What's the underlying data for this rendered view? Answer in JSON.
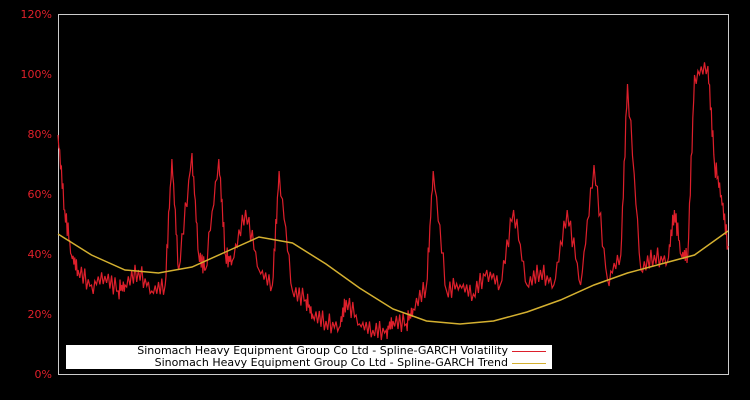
{
  "chart_data": {
    "type": "line",
    "title": "",
    "xlabel": "",
    "ylabel": "",
    "ylim": [
      0,
      120
    ],
    "yticks": [
      "0%",
      "20%",
      "40%",
      "60%",
      "80%",
      "100%",
      "120%"
    ],
    "grid": false,
    "legend_position": "lower-left",
    "series": [
      {
        "name": "Sinomach Heavy Equipment Group Co Ltd - Spline-GARCH Volatility",
        "color": "#dd1f2b",
        "x_frac": [
          0.0,
          0.01,
          0.02,
          0.03,
          0.05,
          0.07,
          0.09,
          0.1,
          0.12,
          0.14,
          0.16,
          0.17,
          0.18,
          0.2,
          0.21,
          0.22,
          0.24,
          0.25,
          0.26,
          0.28,
          0.3,
          0.32,
          0.33,
          0.35,
          0.37,
          0.38,
          0.4,
          0.42,
          0.43,
          0.45,
          0.47,
          0.49,
          0.5,
          0.52,
          0.53,
          0.55,
          0.56,
          0.58,
          0.6,
          0.62,
          0.64,
          0.66,
          0.68,
          0.7,
          0.72,
          0.74,
          0.76,
          0.78,
          0.8,
          0.82,
          0.84,
          0.85,
          0.87,
          0.89,
          0.91,
          0.92,
          0.93,
          0.94,
          0.95,
          0.97,
          0.98,
          0.99,
          1.0
        ],
        "values": [
          80,
          55,
          40,
          35,
          30,
          33,
          28,
          30,
          35,
          28,
          30,
          72,
          35,
          74,
          40,
          35,
          72,
          40,
          38,
          55,
          35,
          30,
          68,
          28,
          25,
          20,
          18,
          16,
          25,
          17,
          15,
          15,
          18,
          17,
          22,
          30,
          68,
          28,
          30,
          27,
          35,
          30,
          55,
          30,
          35,
          30,
          55,
          30,
          70,
          32,
          40,
          97,
          35,
          40,
          38,
          55,
          40,
          40,
          100,
          103,
          70,
          60,
          43
        ]
      },
      {
        "name": "Sinomach Heavy Equipment Group Co Ltd - Spline-GARCH Trend",
        "color": "#d4b030",
        "x_frac": [
          0.0,
          0.05,
          0.1,
          0.15,
          0.2,
          0.25,
          0.3,
          0.35,
          0.4,
          0.45,
          0.5,
          0.55,
          0.6,
          0.65,
          0.7,
          0.75,
          0.8,
          0.85,
          0.9,
          0.95,
          1.0
        ],
        "values": [
          47,
          40,
          35,
          34,
          36,
          41,
          46,
          44,
          37,
          29,
          22,
          18,
          17,
          18,
          21,
          25,
          30,
          34,
          37,
          40,
          48
        ]
      }
    ]
  },
  "legend": {
    "items": [
      {
        "label": "Sinomach Heavy Equipment Group Co Ltd - Spline-GARCH Volatility",
        "color": "#dd1f2b"
      },
      {
        "label": "Sinomach Heavy Equipment Group Co Ltd - Spline-GARCH Trend",
        "color": "#d4b030"
      }
    ]
  },
  "axis": {
    "ticks": [
      "0%",
      "20%",
      "40%",
      "60%",
      "80%",
      "100%",
      "120%"
    ]
  }
}
